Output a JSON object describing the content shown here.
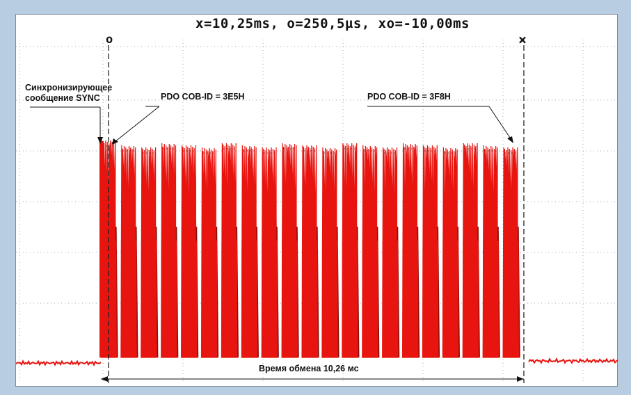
{
  "readout": "x=10,25ms, o=250,5µs, xo=-10,00ms",
  "cursor_o_label": "o",
  "cursor_x_label": "×",
  "annotations": {
    "sync_line1": "Синхронизирующее",
    "sync_line2": "сообщение SYNC",
    "pdo_first": "PDO COB-ID = 3E5H",
    "pdo_last": "PDO COB-ID = 3F8H",
    "exchange_time": "Время обмена 10,26 мс"
  },
  "colors": {
    "signal": "#e8140f",
    "signal_dark": "#8a0c08",
    "grid": "#9aa8b6",
    "cursor": "#222222",
    "frame": "#b8cde2"
  },
  "chart_data": {
    "type": "line",
    "title": "",
    "xlabel": "",
    "ylabel": "",
    "cursors": {
      "o_ms": 0.2505,
      "x_ms": 10.25,
      "delta_ms": -10.0
    },
    "exchange_time_ms": 10.26,
    "grid": true,
    "series": [
      {
        "frames": 21
      }
    ]
  }
}
